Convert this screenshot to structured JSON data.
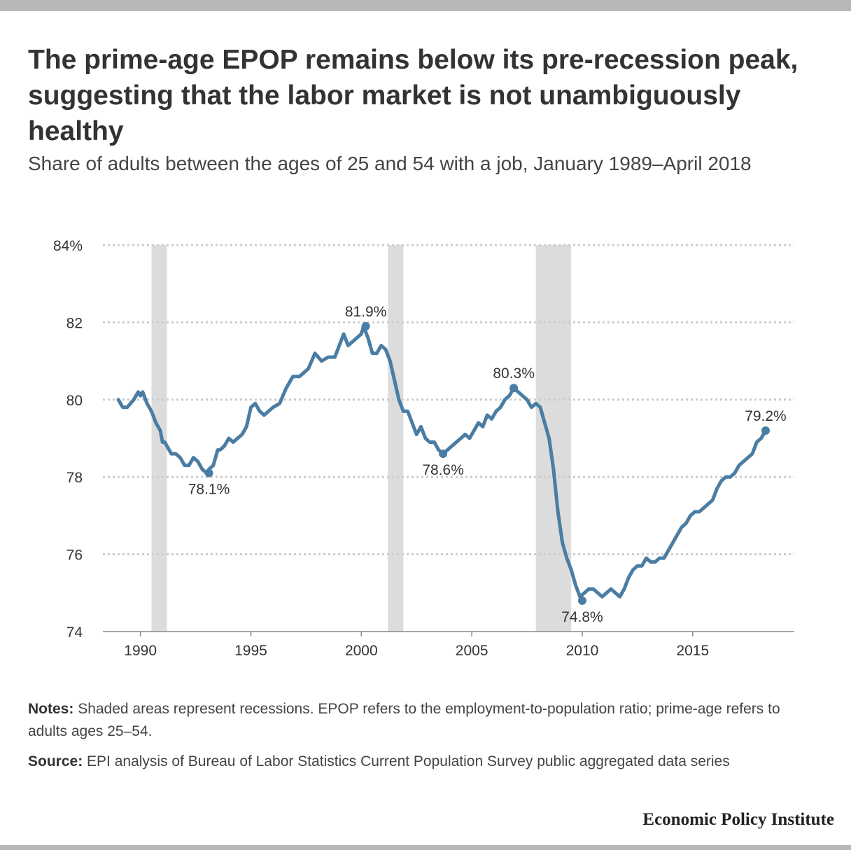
{
  "title": "The prime-age EPOP remains below its pre-recession peak, suggesting that the labor market is not unambiguously healthy",
  "subtitle": "Share of adults between the ages of 25 and 54 with a job, January 1989–April 2018",
  "notes": {
    "label": "Notes:",
    "text": "Shaded areas represent recessions. EPOP refers to the employment-to-population ratio; prime-age refers to adults ages 25–54."
  },
  "source": {
    "label": "Source:",
    "text": "EPI analysis of Bureau of Labor Statistics Current Population Survey public aggregated data series"
  },
  "brand": "Economic Policy Institute",
  "colors": {
    "line": "#4a7da3",
    "recession": "#dcdcdc",
    "grid": "#cccccc",
    "text": "#333333"
  },
  "chart_data": {
    "type": "line",
    "title": "",
    "xlabel": "",
    "ylabel": "",
    "xlim": [
      1988.3,
      2019.6
    ],
    "ylim": [
      74,
      84
    ],
    "yticks": [
      74,
      76,
      78,
      80,
      82,
      84
    ],
    "ytick_labels": [
      "74",
      "76",
      "78",
      "80",
      "82",
      "84%"
    ],
    "xticks": [
      1990,
      1995,
      2000,
      2005,
      2010,
      2015
    ],
    "xtick_labels": [
      "1990",
      "1995",
      "2000",
      "2005",
      "2010",
      "2015"
    ],
    "grid": "horizontal dotted",
    "recessions": [
      [
        1990.5,
        1991.2
      ],
      [
        2001.2,
        2001.9
      ],
      [
        2007.9,
        2009.5
      ]
    ],
    "series": [
      {
        "x": [
          1989.0,
          1989.2,
          1989.4,
          1989.7,
          1989.9,
          1990.0,
          1990.1,
          1990.3,
          1990.5,
          1990.7,
          1990.9,
          1991.0,
          1991.1,
          1991.2,
          1991.4,
          1991.6,
          1991.8,
          1992.0,
          1992.2,
          1992.4,
          1992.6,
          1992.8,
          1993.0,
          1993.1,
          1993.3,
          1993.5,
          1993.6,
          1993.8,
          1994.0,
          1994.2,
          1994.4,
          1994.6,
          1994.8,
          1995.0,
          1995.2,
          1995.4,
          1995.6,
          1995.8,
          1996.0,
          1996.3,
          1996.6,
          1996.9,
          1997.2,
          1997.4,
          1997.6,
          1997.9,
          1998.2,
          1998.5,
          1998.8,
          1999.0,
          1999.2,
          1999.4,
          1999.6,
          1999.8,
          2000.0,
          2000.1,
          2000.3,
          2000.5,
          2000.7,
          2000.9,
          2001.1,
          2001.3,
          2001.5,
          2001.7,
          2001.9,
          2002.1,
          2002.3,
          2002.5,
          2002.7,
          2002.9,
          2003.1,
          2003.3,
          2003.5,
          2003.7,
          2003.9,
          2004.1,
          2004.3,
          2004.5,
          2004.7,
          2004.9,
          2005.1,
          2005.3,
          2005.5,
          2005.7,
          2005.9,
          2006.1,
          2006.3,
          2006.5,
          2006.7,
          2006.9,
          2007.1,
          2007.3,
          2007.5,
          2007.7,
          2007.9,
          2008.1,
          2008.3,
          2008.5,
          2008.7,
          2008.9,
          2009.1,
          2009.3,
          2009.5,
          2009.7,
          2009.9,
          2010.1,
          2010.3,
          2010.5,
          2010.7,
          2010.9,
          2011.1,
          2011.3,
          2011.5,
          2011.7,
          2011.9,
          2012.1,
          2012.3,
          2012.5,
          2012.7,
          2012.9,
          2013.1,
          2013.3,
          2013.5,
          2013.7,
          2013.9,
          2014.1,
          2014.3,
          2014.5,
          2014.7,
          2014.9,
          2015.1,
          2015.3,
          2015.5,
          2015.7,
          2015.9,
          2016.1,
          2016.3,
          2016.5,
          2016.7,
          2016.9,
          2017.1,
          2017.3,
          2017.5,
          2017.7,
          2017.9,
          2018.1,
          2018.3
        ],
        "values": [
          80.0,
          79.8,
          79.8,
          80.0,
          80.2,
          80.1,
          80.2,
          79.9,
          79.7,
          79.4,
          79.2,
          78.9,
          78.9,
          78.8,
          78.6,
          78.6,
          78.5,
          78.3,
          78.3,
          78.5,
          78.4,
          78.2,
          78.1,
          78.2,
          78.3,
          78.7,
          78.7,
          78.8,
          79.0,
          78.9,
          79.0,
          79.1,
          79.3,
          79.8,
          79.9,
          79.7,
          79.6,
          79.7,
          79.8,
          79.9,
          80.3,
          80.6,
          80.6,
          80.7,
          80.8,
          81.2,
          81.0,
          81.1,
          81.1,
          81.4,
          81.7,
          81.4,
          81.5,
          81.6,
          81.7,
          81.9,
          81.6,
          81.2,
          81.2,
          81.4,
          81.3,
          81.0,
          80.5,
          80.0,
          79.7,
          79.7,
          79.4,
          79.1,
          79.3,
          79.0,
          78.9,
          78.9,
          78.7,
          78.6,
          78.7,
          78.8,
          78.9,
          79.0,
          79.1,
          79.0,
          79.2,
          79.4,
          79.3,
          79.6,
          79.5,
          79.7,
          79.8,
          80.0,
          80.1,
          80.3,
          80.2,
          80.1,
          80.0,
          79.8,
          79.9,
          79.8,
          79.4,
          79.0,
          78.2,
          77.1,
          76.3,
          75.9,
          75.6,
          75.2,
          74.9,
          75.0,
          75.1,
          75.1,
          75.0,
          74.9,
          75.0,
          75.1,
          75.0,
          74.9,
          75.1,
          75.4,
          75.6,
          75.7,
          75.7,
          75.9,
          75.8,
          75.8,
          75.9,
          75.9,
          76.1,
          76.3,
          76.5,
          76.7,
          76.8,
          77.0,
          77.1,
          77.1,
          77.2,
          77.3,
          77.4,
          77.7,
          77.9,
          78.0,
          78.0,
          78.1,
          78.3,
          78.4,
          78.5,
          78.6,
          78.9,
          79.0,
          79.2
        ]
      }
    ],
    "annotations": [
      {
        "label": "78.1%",
        "x": 1993.1,
        "y": 78.1,
        "dot": true,
        "position": "below"
      },
      {
        "label": "81.9%",
        "x": 2000.2,
        "y": 81.9,
        "dot": true,
        "position": "above"
      },
      {
        "label": "78.6%",
        "x": 2003.7,
        "y": 78.6,
        "dot": true,
        "position": "below"
      },
      {
        "label": "80.3%",
        "x": 2006.9,
        "y": 80.3,
        "dot": true,
        "position": "above"
      },
      {
        "label": "74.8%",
        "x": 2010.0,
        "y": 74.8,
        "dot": true,
        "position": "below"
      },
      {
        "label": "79.2%",
        "x": 2018.3,
        "y": 79.2,
        "dot": true,
        "position": "above"
      }
    ]
  }
}
